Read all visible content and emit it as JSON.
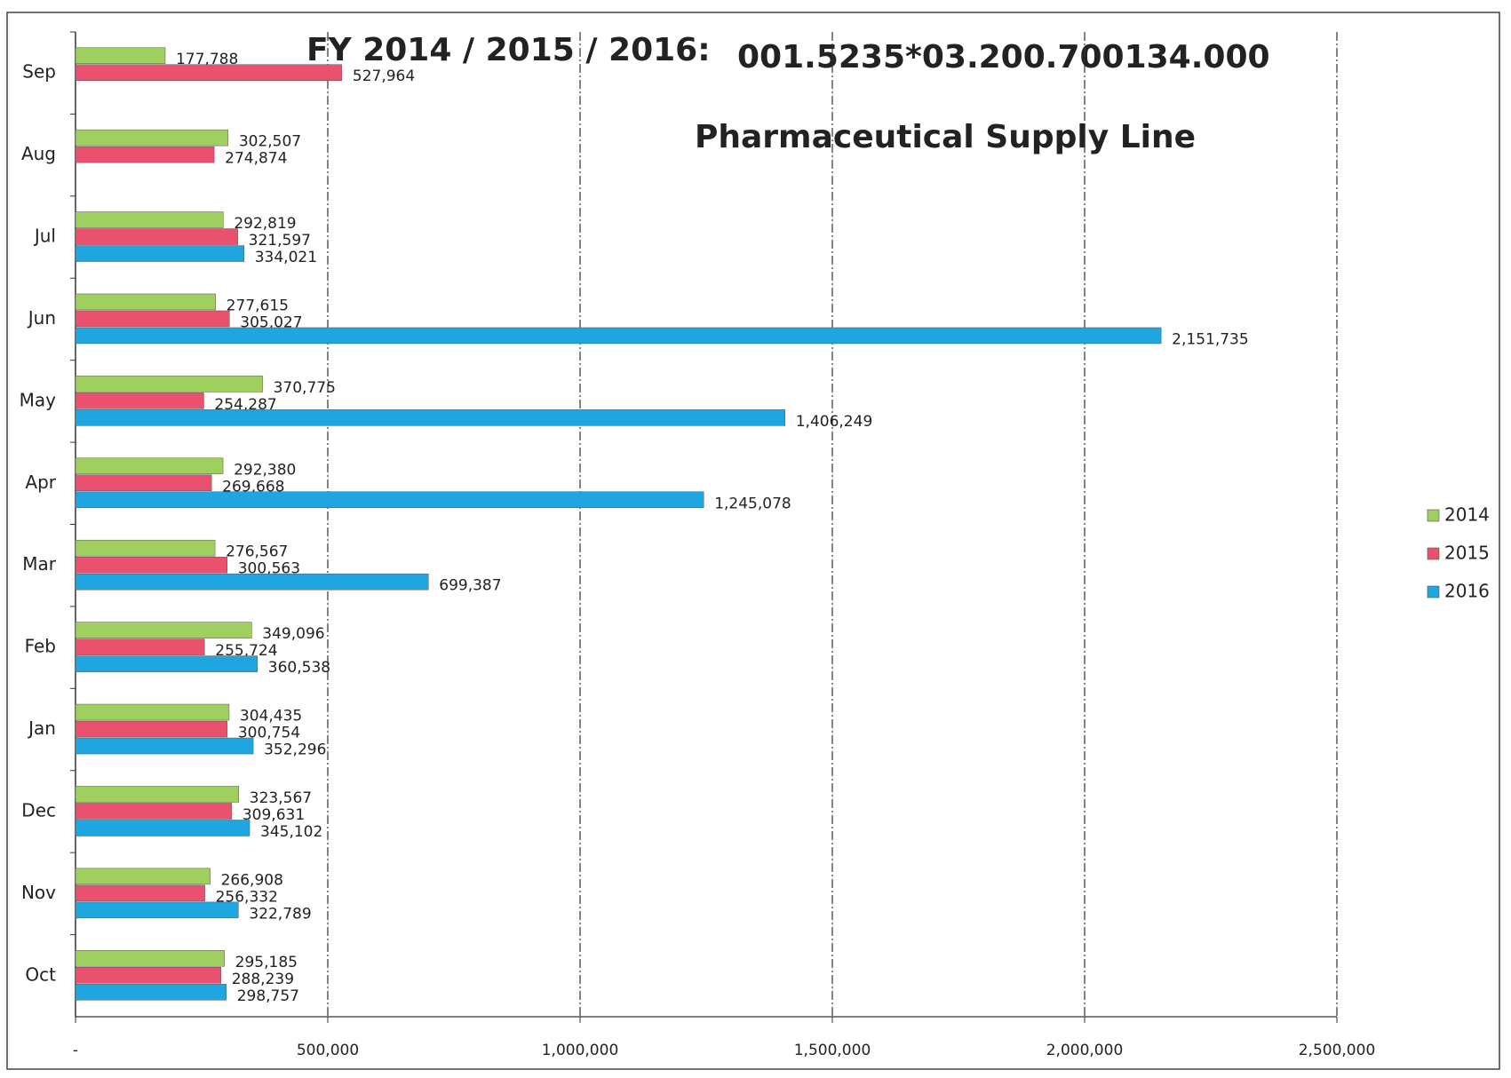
{
  "chart_data": {
    "type": "hbar",
    "title": "FY 2014 / 2015 / 2016:",
    "code": "001.5235*03.200.700134.000",
    "subtitle": "Pharmaceutical Supply Line",
    "categories": [
      "Oct",
      "Nov",
      "Dec",
      "Jan",
      "Feb",
      "Mar",
      "Apr",
      "May",
      "Jun",
      "Jul",
      "Aug",
      "Sep"
    ],
    "series": [
      {
        "name": "2014",
        "color": "#9fcf5e",
        "values": [
          295185,
          266908,
          323567,
          304435,
          349096,
          276567,
          292380,
          370775,
          277615,
          292819,
          302507,
          177788
        ],
        "value_labels": [
          "295,185",
          "266,908",
          "323,567",
          "304,435",
          "349,096",
          "276,567",
          "292,380",
          "370,775",
          "277,615",
          "292,819",
          "302,507",
          "177,788"
        ]
      },
      {
        "name": "2015",
        "color": "#e9516f",
        "values": [
          288239,
          256332,
          309631,
          300754,
          255724,
          300563,
          269668,
          254287,
          305027,
          321597,
          274874,
          527964
        ],
        "value_labels": [
          "288,239",
          "256,332",
          "309,631",
          "300,754",
          "255,724",
          "300,563",
          "269,668",
          "254,287",
          "305,027",
          "321,597",
          "274,874",
          "527,964"
        ]
      },
      {
        "name": "2016",
        "color": "#1fa6e0",
        "values": [
          298757,
          322789,
          345102,
          352296,
          360538,
          699387,
          1245078,
          1406249,
          2151735,
          334021,
          null,
          null
        ],
        "value_labels": [
          "298,757",
          "322,789",
          "345,102",
          "352,296",
          "360,538",
          "699,387",
          "1,245,078",
          "1,406,249",
          "2,151,735",
          "334,021",
          null,
          null
        ]
      }
    ],
    "xlim": [
      0,
      2500000
    ],
    "xticks": [
      {
        "value": 0,
        "label": "-"
      },
      {
        "value": 500000,
        "label": "500,000"
      },
      {
        "value": 1000000,
        "label": "1,000,000"
      },
      {
        "value": 1500000,
        "label": "1,500,000"
      },
      {
        "value": 2000000,
        "label": "2,000,000"
      },
      {
        "value": 2500000,
        "label": "2,500,000"
      }
    ],
    "grid": true,
    "legend": "right"
  }
}
